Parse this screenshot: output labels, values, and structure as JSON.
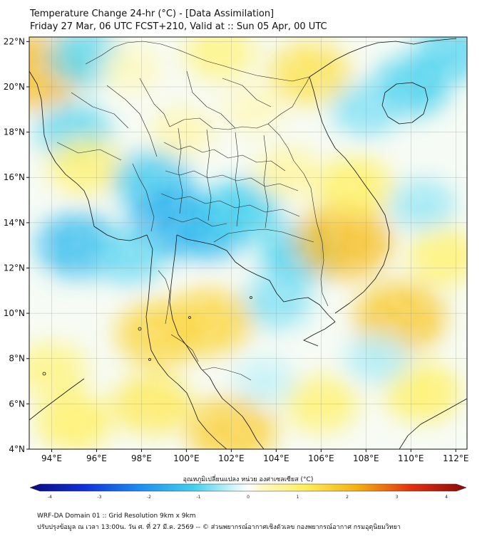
{
  "title": {
    "line1": "Temperature Change 24-hr (°C) - [Data Assimilation]",
    "line2": "Friday 27 Mar, 06 UTC FCST+210, Valid at :: Sun 05 Apr, 00 UTC"
  },
  "map": {
    "lon_range": [
      93,
      112.5
    ],
    "lat_range": [
      4,
      22.2
    ],
    "lon_ticks": [
      94,
      96,
      98,
      100,
      102,
      104,
      106,
      108,
      110,
      112
    ],
    "lon_labels": [
      "94°E",
      "96°E",
      "98°E",
      "100°E",
      "102°E",
      "104°E",
      "106°E",
      "108°E",
      "110°E",
      "112°E"
    ],
    "lat_ticks": [
      4,
      6,
      8,
      10,
      12,
      14,
      16,
      18,
      20,
      22
    ],
    "lat_labels": [
      "4°N",
      "6°N",
      "8°N",
      "10°N",
      "12°N",
      "14°N",
      "16°N",
      "18°N",
      "20°N",
      "22°N"
    ],
    "grid": true,
    "field_blobs": [
      {
        "lon": 93.3,
        "lat": 20.7,
        "value": 1.8
      },
      {
        "lon": 95.5,
        "lat": 21.3,
        "value": -0.9
      },
      {
        "lon": 97.5,
        "lat": 20.8,
        "value": 0.4
      },
      {
        "lon": 101.5,
        "lat": 21.5,
        "value": 0.8
      },
      {
        "lon": 105.5,
        "lat": 20.6,
        "value": 1.2
      },
      {
        "lon": 110.0,
        "lat": 20.0,
        "value": -1.0
      },
      {
        "lon": 111.8,
        "lat": 21.5,
        "value": -0.9
      },
      {
        "lon": 108.0,
        "lat": 19.0,
        "value": -0.7
      },
      {
        "lon": 95.0,
        "lat": 18.0,
        "value": -0.9
      },
      {
        "lon": 95.5,
        "lat": 16.5,
        "value": 0.9
      },
      {
        "lon": 98.5,
        "lat": 15.8,
        "value": -1.1
      },
      {
        "lon": 99.5,
        "lat": 14.0,
        "value": -1.5
      },
      {
        "lon": 101.0,
        "lat": 13.8,
        "value": -1.3
      },
      {
        "lon": 102.5,
        "lat": 14.6,
        "value": -1.0
      },
      {
        "lon": 95.2,
        "lat": 13.0,
        "value": -1.3
      },
      {
        "lon": 97.5,
        "lat": 12.5,
        "value": -0.8
      },
      {
        "lon": 105.0,
        "lat": 12.6,
        "value": -1.0
      },
      {
        "lon": 107.0,
        "lat": 13.2,
        "value": 1.8
      },
      {
        "lon": 107.5,
        "lat": 15.6,
        "value": 1.0
      },
      {
        "lon": 104.5,
        "lat": 16.2,
        "value": 0.6
      },
      {
        "lon": 104.0,
        "lat": 10.5,
        "value": -0.7
      },
      {
        "lon": 101.0,
        "lat": 9.6,
        "value": 1.4
      },
      {
        "lon": 98.8,
        "lat": 9.1,
        "value": 1.4
      },
      {
        "lon": 109.5,
        "lat": 9.8,
        "value": 1.6
      },
      {
        "lon": 111.5,
        "lat": 12.5,
        "value": 0.9
      },
      {
        "lon": 110.5,
        "lat": 14.8,
        "value": -0.6
      },
      {
        "lon": 94.0,
        "lat": 7.5,
        "value": 0.8
      },
      {
        "lon": 95.0,
        "lat": 5.2,
        "value": 1.0
      },
      {
        "lon": 98.5,
        "lat": 6.0,
        "value": 1.1
      },
      {
        "lon": 102.0,
        "lat": 4.8,
        "value": 1.5
      },
      {
        "lon": 106.0,
        "lat": 6.0,
        "value": 0.9
      },
      {
        "lon": 110.5,
        "lat": 6.5,
        "value": 1.0
      },
      {
        "lon": 103.5,
        "lat": 7.0,
        "value": -0.4
      },
      {
        "lon": 108.5,
        "lat": 8.0,
        "value": -0.5
      },
      {
        "lon": 103.0,
        "lat": 19.0,
        "value": 0.4
      },
      {
        "lon": 99.8,
        "lat": 18.0,
        "value": 0.5
      }
    ]
  },
  "colorbar": {
    "title": "อุณหภูมิเปลี่ยนแปลง หน่วย องศาเซลเซียส (°C)",
    "min": -4,
    "max": 4,
    "ticks": [
      -4,
      -3,
      -2,
      -1,
      0,
      1,
      2,
      3,
      4
    ],
    "tick_labels": [
      "-4",
      "-3",
      "-2",
      "-1",
      "0",
      "1",
      "2",
      "3",
      "4"
    ],
    "colors": {
      "-4": "#0a0a80",
      "-3": "#1030d8",
      "-2": "#1c8cf0",
      "-1": "#40d0ee",
      "0": "#ffffff",
      "1": "#fff060",
      "2": "#f4b010",
      "3": "#e03010",
      "4": "#8a0a0a"
    }
  },
  "footer": {
    "line1": "WRF-DA Domain 01 :: Grid Resolution 9km x 9km",
    "line2": "ปรับปรุงข้อมูล ณ เวลา 13:00น. วัน ศ. ที่ 27 มี.ค. 2569 -- © ส่วนพยากรณ์อากาศเชิงตัวเลข กองพยากรณ์อากาศ กรมอุตุนิยมวิทยา"
  }
}
